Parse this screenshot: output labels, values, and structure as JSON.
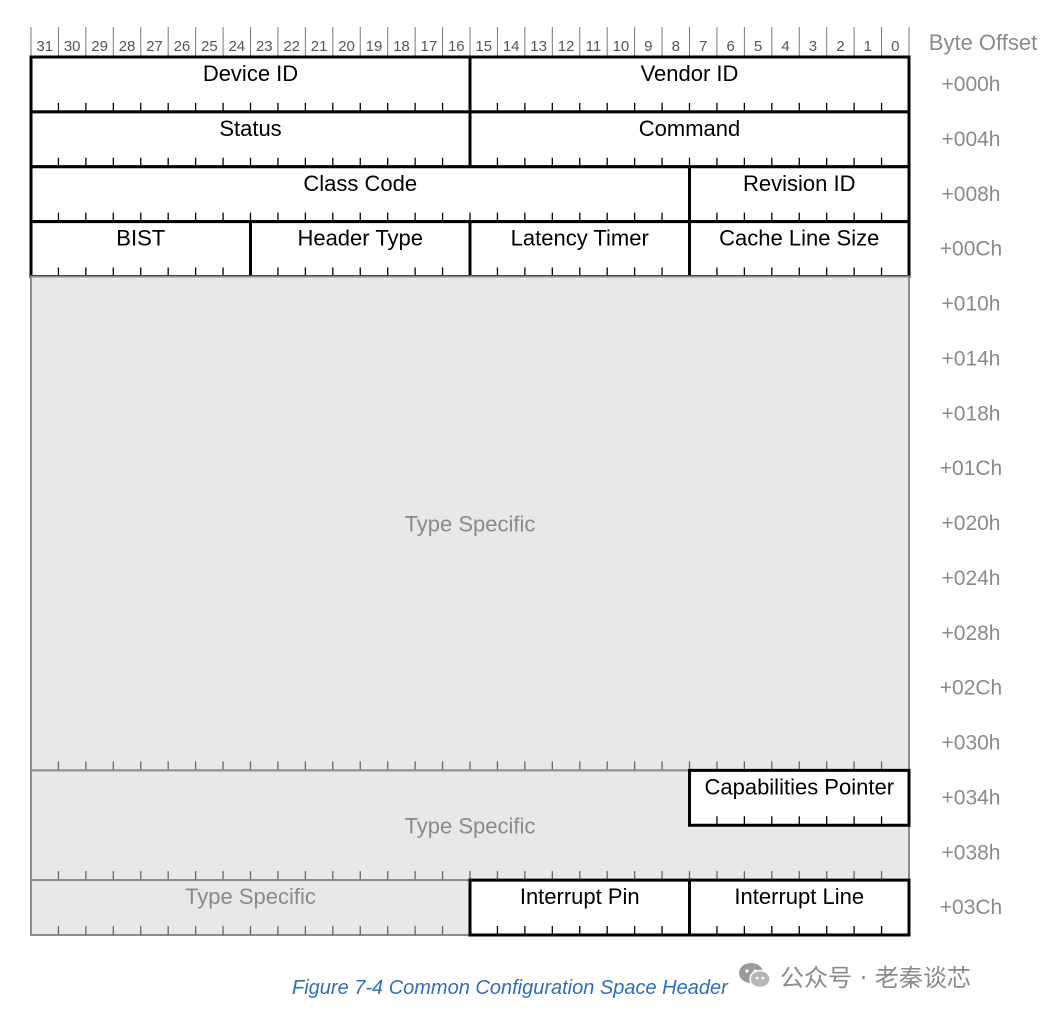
{
  "header": {
    "bit_numbers": [
      "31",
      "30",
      "29",
      "28",
      "27",
      "26",
      "25",
      "24",
      "23",
      "22",
      "21",
      "20",
      "19",
      "18",
      "17",
      "16",
      "15",
      "14",
      "13",
      "12",
      "11",
      "10",
      "9",
      "8",
      "7",
      "6",
      "5",
      "4",
      "3",
      "2",
      "1",
      "0"
    ],
    "byte_offset_title": "Byte Offset"
  },
  "offsets": [
    "+000h",
    "+004h",
    "+008h",
    "+00Ch",
    "+010h",
    "+014h",
    "+018h",
    "+01Ch",
    "+020h",
    "+024h",
    "+028h",
    "+02Ch",
    "+030h",
    "+034h",
    "+038h",
    "+03Ch"
  ],
  "registers": [
    {
      "label": "Device ID",
      "msb": 31,
      "lsb": 16,
      "row": 0,
      "rows": 1,
      "type_specific": false
    },
    {
      "label": "Vendor ID",
      "msb": 15,
      "lsb": 0,
      "row": 0,
      "rows": 1,
      "type_specific": false
    },
    {
      "label": "Status",
      "msb": 31,
      "lsb": 16,
      "row": 1,
      "rows": 1,
      "type_specific": false
    },
    {
      "label": "Command",
      "msb": 15,
      "lsb": 0,
      "row": 1,
      "rows": 1,
      "type_specific": false
    },
    {
      "label": "Class Code",
      "msb": 31,
      "lsb": 8,
      "row": 2,
      "rows": 1,
      "type_specific": false
    },
    {
      "label": "Revision ID",
      "msb": 7,
      "lsb": 0,
      "row": 2,
      "rows": 1,
      "type_specific": false
    },
    {
      "label": "BIST",
      "msb": 31,
      "lsb": 24,
      "row": 3,
      "rows": 1,
      "type_specific": false
    },
    {
      "label": "Header Type",
      "msb": 23,
      "lsb": 16,
      "row": 3,
      "rows": 1,
      "type_specific": false
    },
    {
      "label": "Latency Timer",
      "msb": 15,
      "lsb": 8,
      "row": 3,
      "rows": 1,
      "type_specific": false
    },
    {
      "label": "Cache Line Size",
      "msb": 7,
      "lsb": 0,
      "row": 3,
      "rows": 1,
      "type_specific": false
    },
    {
      "label": "Type Specific",
      "msb": 31,
      "lsb": 0,
      "row": 4,
      "rows": 9,
      "type_specific": true
    },
    {
      "label": "Type Specific",
      "msb": 31,
      "lsb": 0,
      "row": 13,
      "rows": 2,
      "type_specific": true
    },
    {
      "label": "Capabilities Pointer",
      "msb": 7,
      "lsb": 0,
      "row": 13,
      "rows": 1,
      "type_specific": false
    },
    {
      "label": "Type Specific",
      "msb": 31,
      "lsb": 16,
      "row": 15,
      "rows": 1,
      "type_specific": true
    },
    {
      "label": "Interrupt Pin",
      "msb": 15,
      "lsb": 8,
      "row": 15,
      "rows": 1,
      "type_specific": false
    },
    {
      "label": "Interrupt Line",
      "msb": 7,
      "lsb": 0,
      "row": 15,
      "rows": 1,
      "type_specific": false
    }
  ],
  "caption": "Figure  7-4  Common Configuration Space Header",
  "watermark": {
    "text": "公众号 · 老秦谈芯",
    "icon": "wechat-icon"
  },
  "colors": {
    "border": "#000000",
    "type_specific_fill": "#e8e8e8",
    "type_specific_border": "#8c8c8c",
    "type_specific_text": "#8a8a8a",
    "caption": "#2f6fb3",
    "grey_text": "#8a8a8a"
  }
}
